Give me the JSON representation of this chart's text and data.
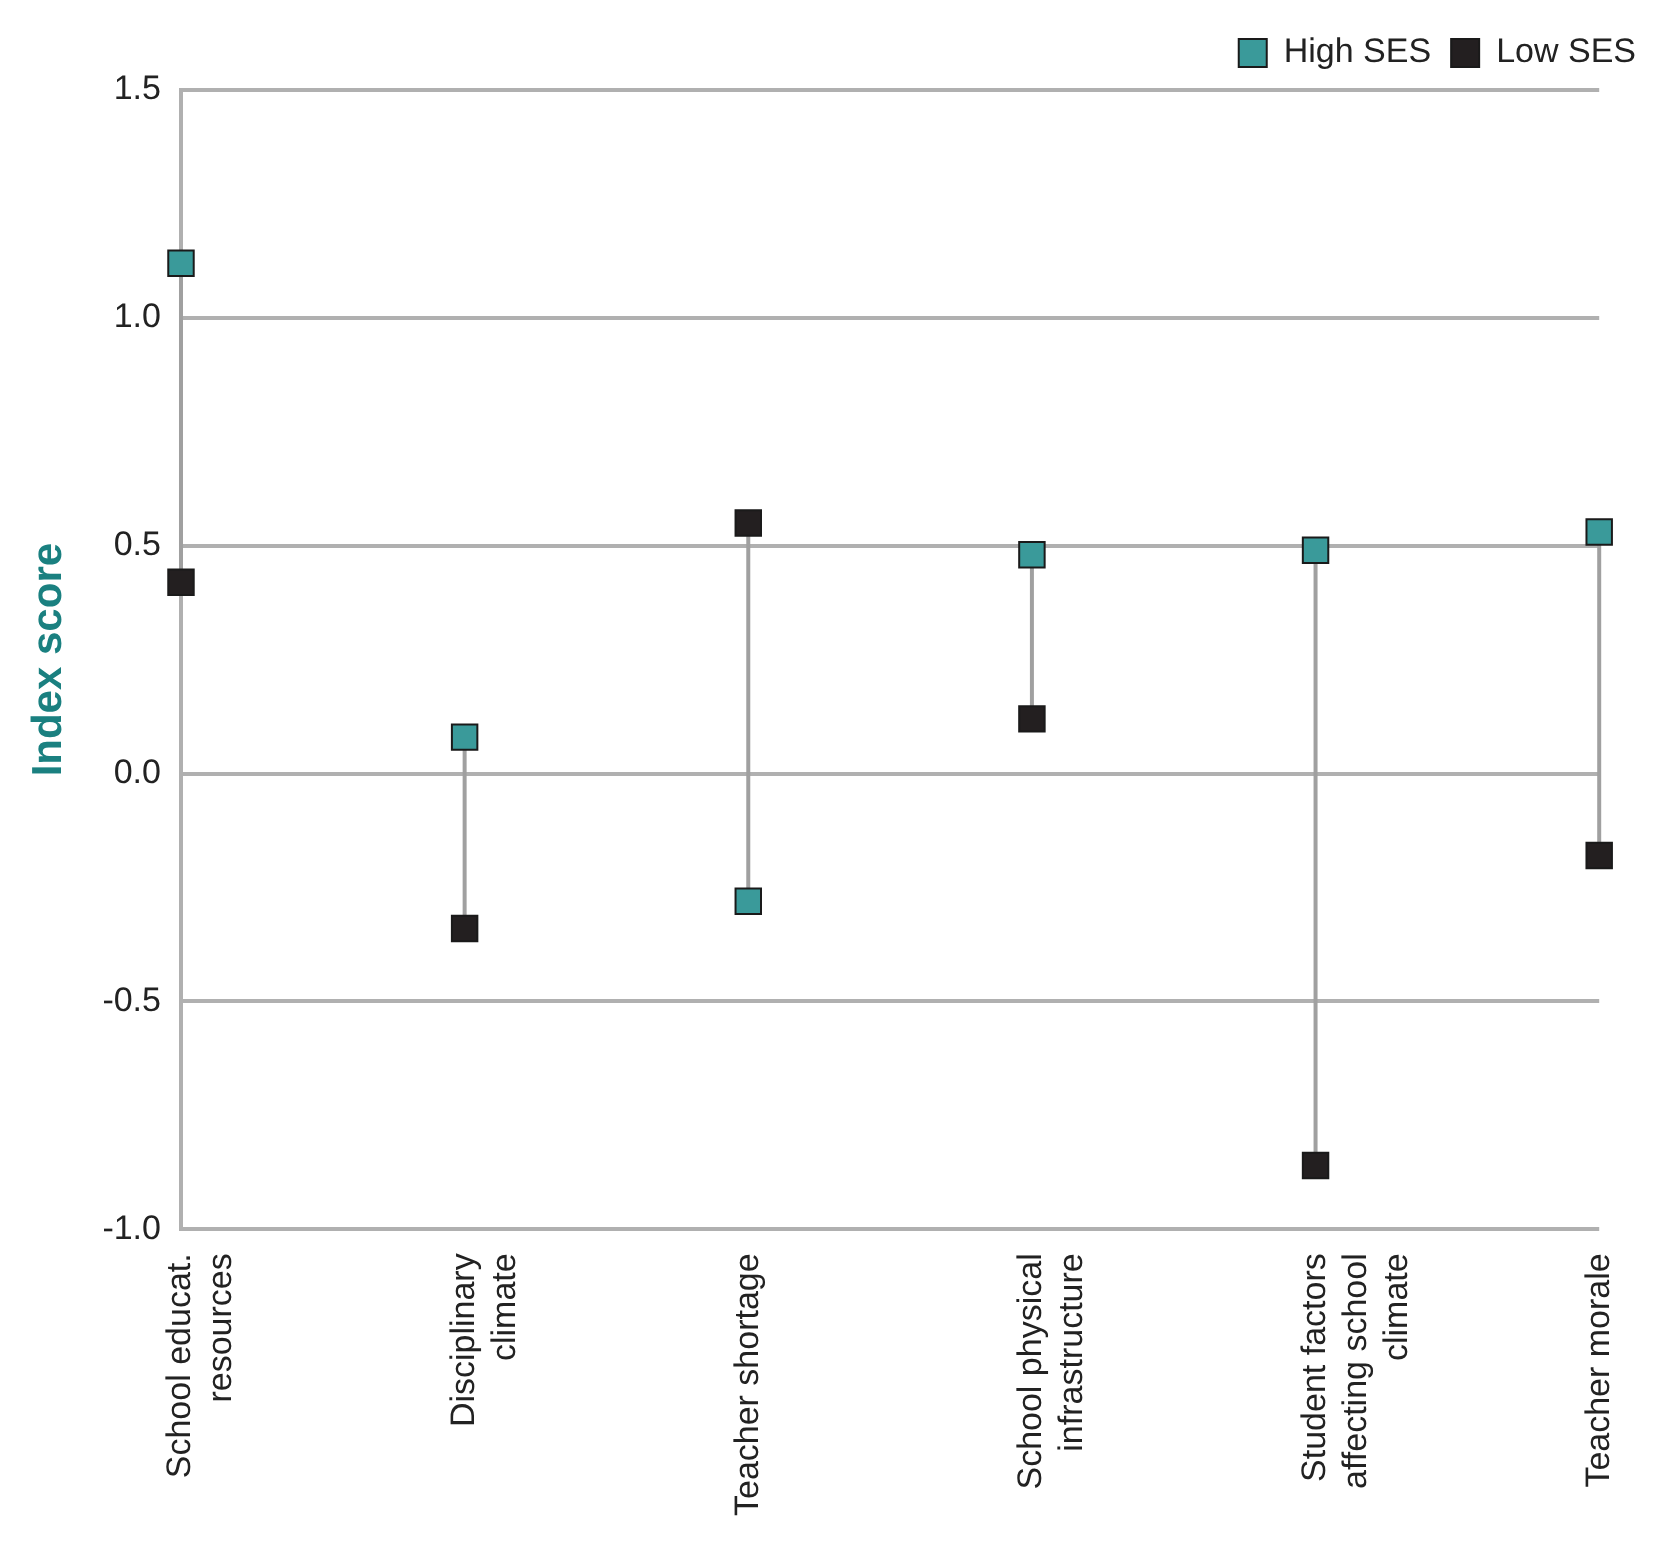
{
  "chart_data": {
    "type": "scatter",
    "ylabel": "Index score",
    "categories": [
      "School educat. resources",
      "Disciplinary climate",
      "Teacher shortage",
      "School physical infrastructure",
      "Student factors affecting school climate",
      "Teacher morale"
    ],
    "series": [
      {
        "name": "High SES",
        "color": "#3a9a9a",
        "values": [
          1.12,
          0.08,
          -0.28,
          0.48,
          0.49,
          0.53
        ]
      },
      {
        "name": "Low SES",
        "color": "#231f20",
        "values": [
          0.42,
          -0.34,
          0.55,
          0.12,
          -0.86,
          -0.18
        ]
      }
    ],
    "ylim": [
      -1,
      1.5
    ],
    "yticks": [
      {
        "value": -1,
        "label": "-1.0"
      },
      {
        "value": -0.5,
        "label": "-0.5"
      },
      {
        "value": 0,
        "label": "0.0"
      },
      {
        "value": 0.5,
        "label": "0.5"
      },
      {
        "value": 1,
        "label": "1.0"
      },
      {
        "value": 1.5,
        "label": "1.5"
      }
    ],
    "grid": "y",
    "legend": "top right",
    "marker": "square"
  }
}
